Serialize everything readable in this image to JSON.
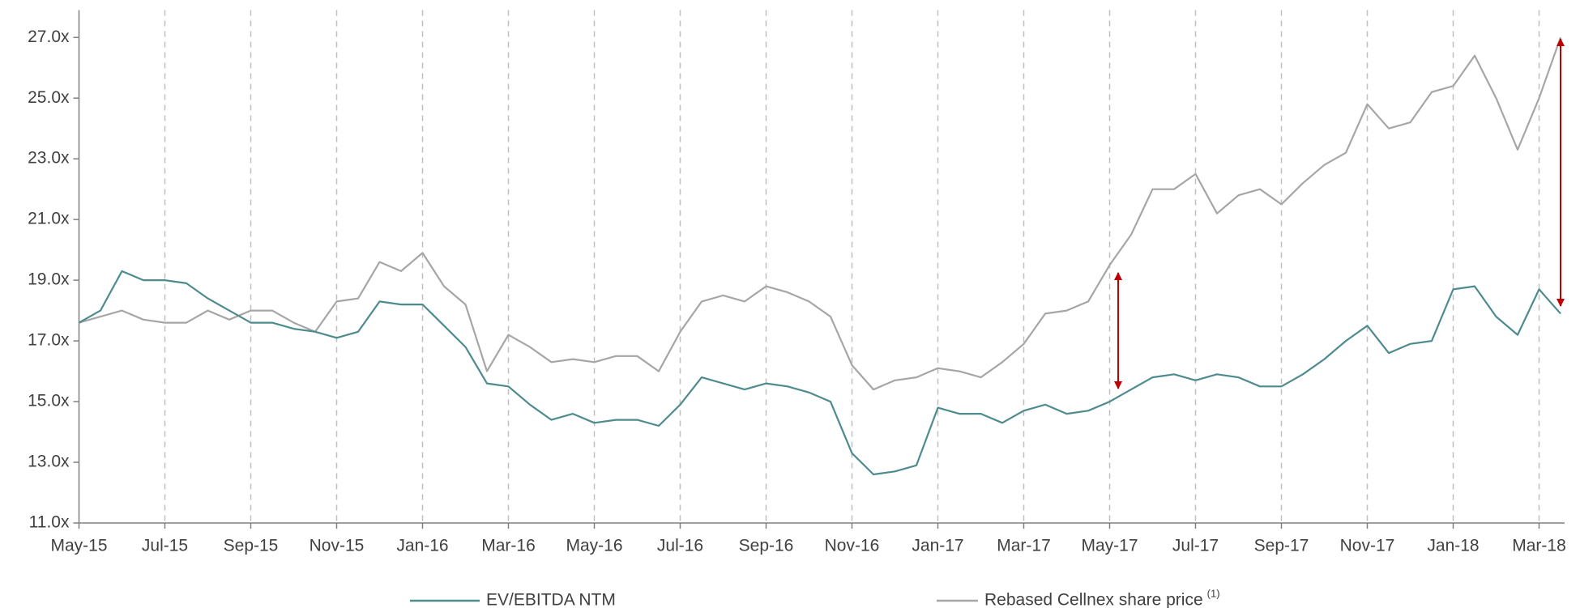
{
  "chart_data": {
    "type": "line",
    "x": [
      "May-15",
      null,
      null,
      null,
      "Jul-15",
      null,
      null,
      null,
      "Sep-15",
      null,
      null,
      null,
      "Nov-15",
      null,
      null,
      null,
      "Jan-16",
      null,
      null,
      null,
      "Mar-16",
      null,
      null,
      null,
      "May-16",
      null,
      null,
      null,
      "Jul-16",
      null,
      null,
      null,
      "Sep-16",
      null,
      null,
      null,
      "Nov-16",
      null,
      null,
      null,
      "Jan-17",
      null,
      null,
      null,
      "Mar-17",
      null,
      null,
      null,
      "May-17",
      null,
      null,
      null,
      "Jul-17",
      null,
      null,
      null,
      "Sep-17",
      null,
      null,
      null,
      "Nov-17",
      null,
      null,
      null,
      "Jan-18",
      null,
      null,
      null,
      "Mar-18",
      null
    ],
    "series": [
      {
        "name": "EV/EBITDA NTM",
        "color": "#4e8b8f",
        "values": [
          17.6,
          18.0,
          19.3,
          19.0,
          19.0,
          18.9,
          18.4,
          18.0,
          17.6,
          17.6,
          17.4,
          17.3,
          17.1,
          17.3,
          18.3,
          18.2,
          18.2,
          17.5,
          16.8,
          15.6,
          15.5,
          14.9,
          14.4,
          14.6,
          14.3,
          14.4,
          14.4,
          14.2,
          14.9,
          15.8,
          15.6,
          15.4,
          15.6,
          15.5,
          15.3,
          15.0,
          13.3,
          12.6,
          12.7,
          12.9,
          14.8,
          14.6,
          14.6,
          14.3,
          14.7,
          14.9,
          14.6,
          14.7,
          15.0,
          15.4,
          15.8,
          15.9,
          15.7,
          15.9,
          15.8,
          15.5,
          15.5,
          15.9,
          16.4,
          17.0,
          17.5,
          16.6,
          16.9,
          17.0,
          18.7,
          18.8,
          17.8,
          17.2,
          18.7,
          17.9
        ]
      },
      {
        "name": "Rebased Cellnex share price",
        "note": "(1)",
        "color": "#a6a6a6",
        "values": [
          17.6,
          17.8,
          18.0,
          17.7,
          17.6,
          17.6,
          18.0,
          17.7,
          18.0,
          18.0,
          17.6,
          17.3,
          18.3,
          18.4,
          19.6,
          19.3,
          19.9,
          18.8,
          18.2,
          16.0,
          17.2,
          16.8,
          16.3,
          16.4,
          16.3,
          16.5,
          16.5,
          16.0,
          17.3,
          18.3,
          18.5,
          18.3,
          18.8,
          18.6,
          18.3,
          17.8,
          16.2,
          15.4,
          15.7,
          15.8,
          16.1,
          16.0,
          15.8,
          16.3,
          16.9,
          17.9,
          18.0,
          18.3,
          19.5,
          20.5,
          22.0,
          22.0,
          22.5,
          21.2,
          21.8,
          22.0,
          21.5,
          22.2,
          22.8,
          23.2,
          24.8,
          24.0,
          24.2,
          25.2,
          25.4,
          26.4,
          25.0,
          23.3,
          25.0,
          27.0
        ]
      }
    ],
    "ylim": [
      11,
      27.9
    ],
    "yticks": [
      {
        "value": 11,
        "label": "11.0x"
      },
      {
        "value": 13,
        "label": "13.0x"
      },
      {
        "value": 15,
        "label": "15.0x"
      },
      {
        "value": 17,
        "label": "17.0x"
      },
      {
        "value": 19,
        "label": "19.0x"
      },
      {
        "value": 21,
        "label": "21.0x"
      },
      {
        "value": 23,
        "label": "23.0x"
      },
      {
        "value": 25,
        "label": "25.0x"
      },
      {
        "value": 27,
        "label": "27.0x"
      }
    ],
    "xgrid": true,
    "legend": "bottom"
  }
}
